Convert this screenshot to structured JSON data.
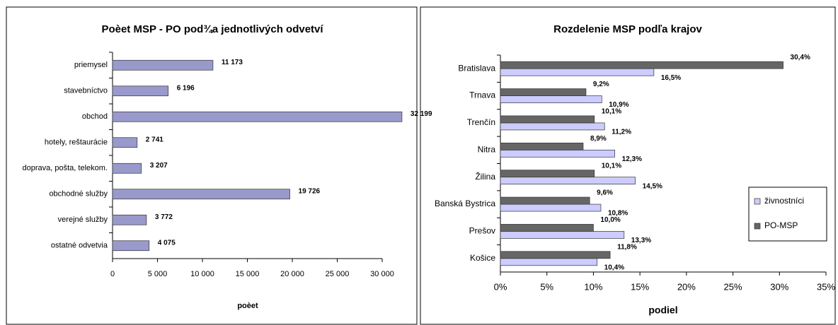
{
  "chart_data": [
    {
      "type": "hbar",
      "title": "Poèet MSP - PO pod¾a jednotlivých odvetví",
      "x_label": "poèet",
      "categories": [
        "priemysel",
        "stavebníctvo",
        "obchod",
        "hotely, reštaurácie",
        "doprava, pošta, telekom.",
        "obchodné služby",
        "verejné služby",
        "ostatné odvetvia"
      ],
      "values": [
        11173,
        6196,
        32199,
        2741,
        3207,
        19726,
        3772,
        4075
      ],
      "value_labels": [
        "11 173",
        "6 196",
        "32 199",
        "2 741",
        "3 207",
        "19 726",
        "3 772",
        "4 075"
      ],
      "color": "#9999cc",
      "xlim": [
        0,
        30000
      ],
      "xticks": [
        0,
        {
          "value": 5000,
          "label": "5 000"
        },
        {
          "value": 10000,
          "label": "10 000"
        },
        {
          "value": 15000,
          "label": "15 000"
        },
        {
          "value": 20000,
          "label": "20 000"
        },
        {
          "value": 25000,
          "label": "25 000"
        },
        {
          "value": 30000,
          "label": "30 000"
        }
      ]
    },
    {
      "type": "hbar",
      "title": "Rozdelenie MSP podľa krajov",
      "x_label": "podiel",
      "categories": [
        "Bratislava",
        "Trnava",
        "Trenčín",
        "Nitra",
        "Žilina",
        "Banská Bystrica",
        "Prešov",
        "Košice"
      ],
      "series": [
        {
          "name": "živnostníci",
          "color": "#ccccff",
          "values": [
            16.5,
            10.9,
            11.2,
            12.3,
            14.5,
            10.8,
            13.3,
            10.4
          ],
          "value_labels": [
            "16,5%",
            "10,9%",
            "11,2%",
            "12,3%",
            "14,5%",
            "10,8%",
            "13,3%",
            "10,4%"
          ]
        },
        {
          "name": "PO-MSP",
          "color": "#666666",
          "values": [
            30.4,
            9.2,
            10.1,
            8.9,
            10.1,
            9.6,
            10.0,
            11.8
          ],
          "value_labels": [
            "30,4%",
            "9,2%",
            "10,1%",
            "8,9%",
            "10,1%",
            "9,6%",
            "10,0%",
            "11,8%"
          ]
        }
      ],
      "legend": "right",
      "xlim": [
        0,
        35
      ],
      "xticks": [
        {
          "value": 0,
          "label": "0%"
        },
        {
          "value": 5,
          "label": "5%"
        },
        {
          "value": 10,
          "label": "10%"
        },
        {
          "value": 15,
          "label": "15%"
        },
        {
          "value": 20,
          "label": "20%"
        },
        {
          "value": 25,
          "label": "25%"
        },
        {
          "value": 30,
          "label": "30%"
        },
        {
          "value": 35,
          "label": "35%"
        }
      ]
    }
  ]
}
